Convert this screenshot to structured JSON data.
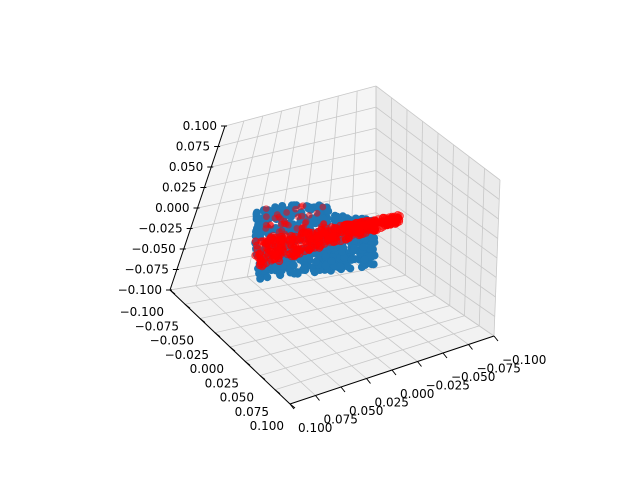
{
  "chart_data": {
    "type": "scatter",
    "projection": "3d",
    "grid": true,
    "axes": {
      "z": {
        "range": [
          -0.1,
          0.1
        ],
        "ticks": [
          "0.100",
          "0.075",
          "0.050",
          "0.025",
          "0.000",
          "−0.025",
          "−0.050",
          "−0.075",
          "−0.100"
        ]
      },
      "x_left": {
        "range": [
          -0.1,
          0.1
        ],
        "ticks": [
          "−0.100",
          "−0.075",
          "−0.050",
          "−0.025",
          "0.000",
          "0.025",
          "0.050",
          "0.075",
          "0.100"
        ]
      },
      "y_right": {
        "range": [
          0.1,
          -0.1
        ],
        "ticks": [
          "0.100",
          "0.075",
          "0.050",
          "0.025",
          "0.000",
          "−0.025",
          "−0.050",
          "−0.075",
          "−0.100"
        ]
      }
    },
    "series": [
      {
        "color": "#1f77b4",
        "marker": "circle",
        "description_points": "dense cluster",
        "center": [
          0.01,
          -0.01,
          -0.035
        ]
      },
      {
        "color": "#ff0000",
        "marker": "circle",
        "opacity": 0.6,
        "center": [
          0.0,
          -0.02,
          -0.03
        ]
      }
    ]
  }
}
